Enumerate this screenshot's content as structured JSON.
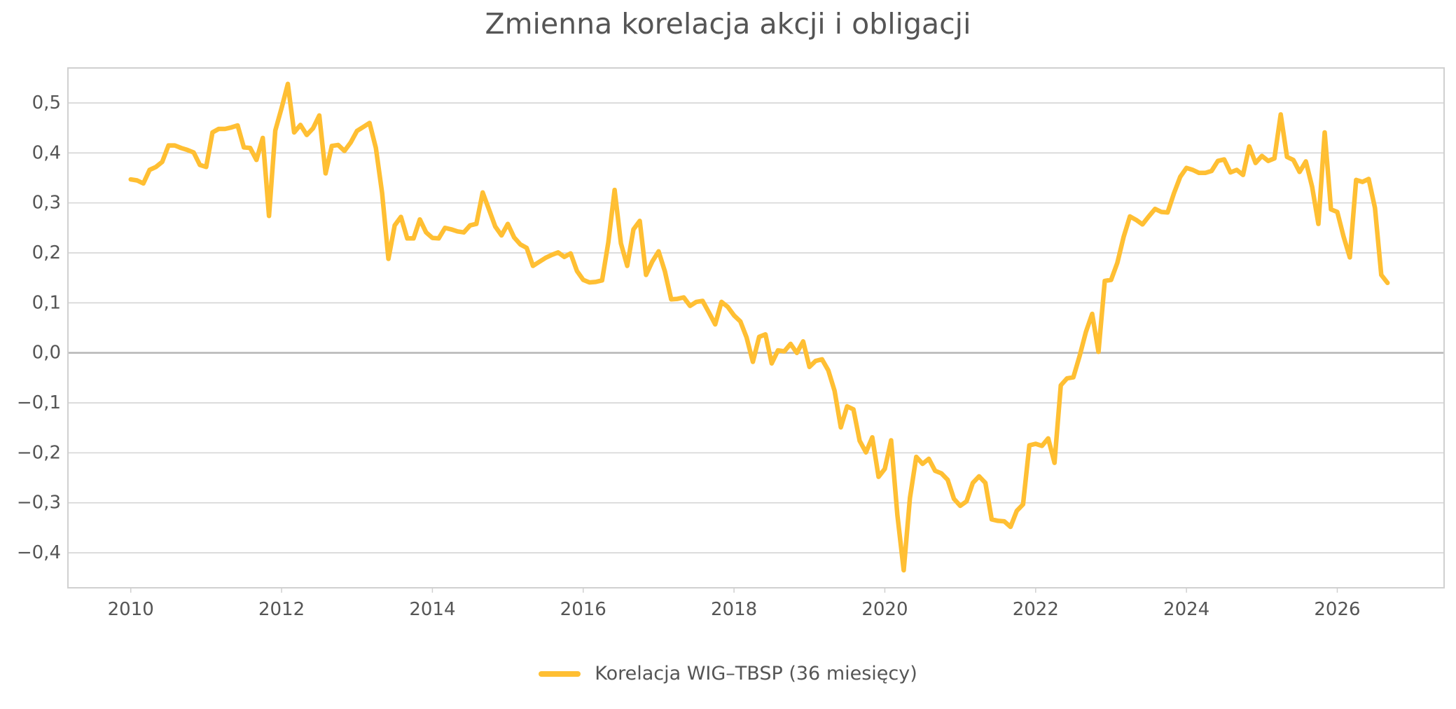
{
  "chart_data": {
    "type": "line",
    "title": "Zmienna korelacja akcji i obligacji",
    "xlabel": "",
    "ylabel": "",
    "grid": true,
    "legend_position": "bottom-center",
    "colors": {
      "line": "#FFBF33",
      "grid": "#d4d4d4",
      "zero_line": "#b5b5b5",
      "frame": "#d0d0d0",
      "text": "#555555"
    },
    "x_ticks": [
      "2010",
      "2012",
      "2014",
      "2016",
      "2018",
      "2020",
      "2022",
      "2024",
      "2026"
    ],
    "y_ticks": [
      "−0,4",
      "−0,3",
      "−0,2",
      "−0,1",
      "0,0",
      "0,1",
      "0,2",
      "0,3",
      "0,4",
      "0,5"
    ],
    "xlim": [
      "2009-03",
      "2027-06"
    ],
    "ylim": [
      -0.47,
      0.57
    ],
    "series": [
      {
        "name": "Korelacja WIG–TBSP (36 miesięcy)",
        "x": [
          "2010-01",
          "2010-02",
          "2010-03",
          "2010-04",
          "2010-05",
          "2010-06",
          "2010-07",
          "2010-08",
          "2010-09",
          "2010-10",
          "2010-11",
          "2010-12",
          "2011-01",
          "2011-02",
          "2011-03",
          "2011-04",
          "2011-05",
          "2011-06",
          "2011-07",
          "2011-08",
          "2011-09",
          "2011-10",
          "2011-11",
          "2011-12",
          "2012-01",
          "2012-02",
          "2012-03",
          "2012-04",
          "2012-05",
          "2012-06",
          "2012-07",
          "2012-08",
          "2012-09",
          "2012-10",
          "2012-11",
          "2012-12",
          "2013-01",
          "2013-02",
          "2013-03",
          "2013-04",
          "2013-05",
          "2013-06",
          "2013-07",
          "2013-08",
          "2013-09",
          "2013-10",
          "2013-11",
          "2013-12",
          "2014-01",
          "2014-02",
          "2014-03",
          "2014-04",
          "2014-05",
          "2014-06",
          "2014-07",
          "2014-08",
          "2014-09",
          "2014-10",
          "2014-11",
          "2014-12",
          "2015-01",
          "2015-02",
          "2015-03",
          "2015-04",
          "2015-05",
          "2015-06",
          "2015-07",
          "2015-08",
          "2015-09",
          "2015-10",
          "2015-11",
          "2015-12",
          "2016-01",
          "2016-02",
          "2016-03",
          "2016-04",
          "2016-05",
          "2016-06",
          "2016-07",
          "2016-08",
          "2016-09",
          "2016-10",
          "2016-11",
          "2016-12",
          "2017-01",
          "2017-02",
          "2017-03",
          "2017-04",
          "2017-05",
          "2017-06",
          "2017-07",
          "2017-08",
          "2017-09",
          "2017-10",
          "2017-11",
          "2017-12",
          "2018-01",
          "2018-02",
          "2018-03",
          "2018-04",
          "2018-05",
          "2018-06",
          "2018-07",
          "2018-08",
          "2018-09",
          "2018-10",
          "2018-11",
          "2018-12",
          "2019-01",
          "2019-02",
          "2019-03",
          "2019-04",
          "2019-05",
          "2019-06",
          "2019-07",
          "2019-08",
          "2019-09",
          "2019-10",
          "2019-11",
          "2019-12",
          "2020-01",
          "2020-02",
          "2020-03",
          "2020-04",
          "2020-05",
          "2020-06",
          "2020-07",
          "2020-08",
          "2020-09",
          "2020-10",
          "2020-11",
          "2020-12",
          "2021-01",
          "2021-02",
          "2021-03",
          "2021-04",
          "2021-05",
          "2021-06",
          "2021-07",
          "2021-08",
          "2021-09",
          "2021-10",
          "2021-11",
          "2021-12",
          "2022-01",
          "2022-02",
          "2022-03",
          "2022-04",
          "2022-05",
          "2022-06",
          "2022-07",
          "2022-08",
          "2022-09",
          "2022-10",
          "2022-11",
          "2022-12",
          "2023-01",
          "2023-02",
          "2023-03",
          "2023-04",
          "2023-05",
          "2023-06",
          "2023-07",
          "2023-08",
          "2023-09",
          "2023-10",
          "2023-11",
          "2023-12",
          "2024-01",
          "2024-02",
          "2024-03",
          "2024-04",
          "2024-05",
          "2024-06",
          "2024-07",
          "2024-08",
          "2024-09",
          "2024-10",
          "2024-11",
          "2024-12",
          "2025-01",
          "2025-02",
          "2025-03",
          "2025-04",
          "2025-05",
          "2025-06",
          "2025-07",
          "2025-08",
          "2025-09",
          "2025-10",
          "2025-11",
          "2025-12",
          "2026-01",
          "2026-02",
          "2026-03",
          "2026-04",
          "2026-05",
          "2026-06",
          "2026-07",
          "2026-08",
          "2026-09"
        ],
        "values": [
          0.347,
          0.345,
          0.339,
          0.366,
          0.372,
          0.382,
          0.415,
          0.415,
          0.41,
          0.406,
          0.401,
          0.376,
          0.372,
          0.441,
          0.448,
          0.448,
          0.451,
          0.455,
          0.411,
          0.41,
          0.386,
          0.43,
          0.274,
          0.445,
          0.49,
          0.538,
          0.441,
          0.456,
          0.436,
          0.449,
          0.475,
          0.359,
          0.414,
          0.416,
          0.404,
          0.421,
          0.444,
          0.452,
          0.46,
          0.41,
          0.32,
          0.188,
          0.255,
          0.272,
          0.229,
          0.229,
          0.267,
          0.241,
          0.23,
          0.229,
          0.25,
          0.247,
          0.243,
          0.241,
          0.255,
          0.258,
          0.321,
          0.287,
          0.253,
          0.235,
          0.258,
          0.231,
          0.217,
          0.21,
          0.174,
          0.182,
          0.19,
          0.196,
          0.201,
          0.192,
          0.199,
          0.164,
          0.146,
          0.141,
          0.142,
          0.145,
          0.221,
          0.326,
          0.219,
          0.174,
          0.247,
          0.264,
          0.156,
          0.183,
          0.203,
          0.163,
          0.107,
          0.108,
          0.111,
          0.094,
          0.102,
          0.104,
          0.081,
          0.057,
          0.102,
          0.092,
          0.075,
          0.063,
          0.031,
          -0.018,
          0.032,
          0.037,
          -0.021,
          0.005,
          0.003,
          0.018,
          0.0,
          0.023,
          -0.028,
          -0.016,
          -0.013,
          -0.035,
          -0.076,
          -0.149,
          -0.107,
          -0.113,
          -0.176,
          -0.199,
          -0.169,
          -0.248,
          -0.232,
          -0.175,
          -0.325,
          -0.435,
          -0.29,
          -0.208,
          -0.222,
          -0.212,
          -0.236,
          -0.241,
          -0.254,
          -0.292,
          -0.306,
          -0.297,
          -0.26,
          -0.247,
          -0.26,
          -0.333,
          -0.336,
          -0.337,
          -0.348,
          -0.316,
          -0.303,
          -0.185,
          -0.182,
          -0.186,
          -0.171,
          -0.22,
          -0.065,
          -0.051,
          -0.049,
          -0.006,
          0.042,
          0.078,
          0.002,
          0.144,
          0.146,
          0.18,
          0.232,
          0.273,
          0.266,
          0.257,
          0.273,
          0.288,
          0.282,
          0.281,
          0.319,
          0.352,
          0.37,
          0.366,
          0.36,
          0.36,
          0.364,
          0.384,
          0.387,
          0.361,
          0.366,
          0.356,
          0.413,
          0.38,
          0.394,
          0.384,
          0.389,
          0.477,
          0.392,
          0.386,
          0.362,
          0.383,
          0.332,
          0.258,
          0.441,
          0.287,
          0.282,
          0.233,
          0.191,
          0.346,
          0.342,
          0.348,
          0.29,
          0.156,
          0.14
        ]
      }
    ]
  }
}
